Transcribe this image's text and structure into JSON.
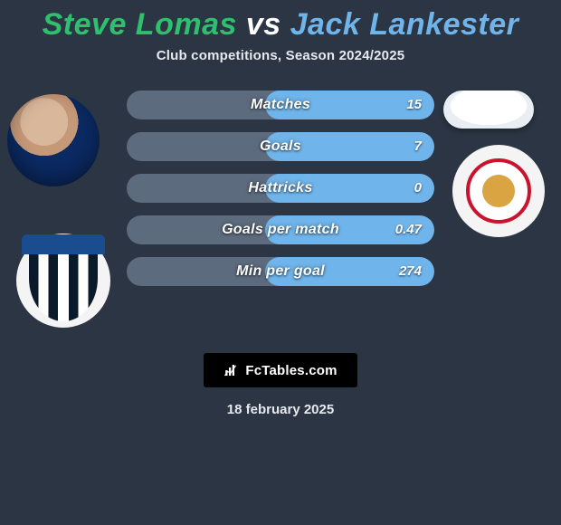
{
  "background_color": "#2b3543",
  "title": {
    "player1": {
      "name": "Steve Lomas",
      "color": "#2fbf6e"
    },
    "vs_text": "vs",
    "vs_color": "#ffffff",
    "player2": {
      "name": "Jack Lankester",
      "color": "#6fb4ea"
    },
    "fontsize": 34
  },
  "subtitle": {
    "text": "Club competitions, Season 2024/2025",
    "color": "#e6e9ee",
    "fontsize": 15
  },
  "player1_club": {
    "name": "Gillingham",
    "badge_colors": {
      "ring": "#f4f4f4",
      "stripes_dark": "#0a1a2a",
      "stripes_light": "#ffffff",
      "banner": "#1a4d8f"
    }
  },
  "player2_club": {
    "name": "Crewe Alexandra",
    "badge_colors": {
      "ring": "#f4f4f4",
      "border": "#c9142d",
      "center": "#d9a441",
      "inner_bg": "#ffffff"
    }
  },
  "stats": {
    "type": "stat-bars",
    "track_color": "#5c6b7e",
    "track_height": 32,
    "track_radius": 16,
    "label_color": "#ffffff",
    "label_fontsize": 16,
    "value_color": "#ffffff",
    "value_fontsize": 15,
    "rows": [
      {
        "label": "Matches",
        "value": "15",
        "fill_pct": 55,
        "fill_color": "#6fb4ea"
      },
      {
        "label": "Goals",
        "value": "7",
        "fill_pct": 55,
        "fill_color": "#6fb4ea"
      },
      {
        "label": "Hattricks",
        "value": "0",
        "fill_pct": 55,
        "fill_color": "#6fb4ea"
      },
      {
        "label": "Goals per match",
        "value": "0.47",
        "fill_pct": 55,
        "fill_color": "#6fb4ea"
      },
      {
        "label": "Min per goal",
        "value": "274",
        "fill_pct": 55,
        "fill_color": "#6fb4ea"
      }
    ]
  },
  "brand": {
    "text": "FcTables.com",
    "bg": "#000000",
    "fg": "#ffffff",
    "icon": "chart-icon"
  },
  "date": {
    "text": "18 february 2025",
    "color": "#e6e9ee",
    "fontsize": 15
  }
}
